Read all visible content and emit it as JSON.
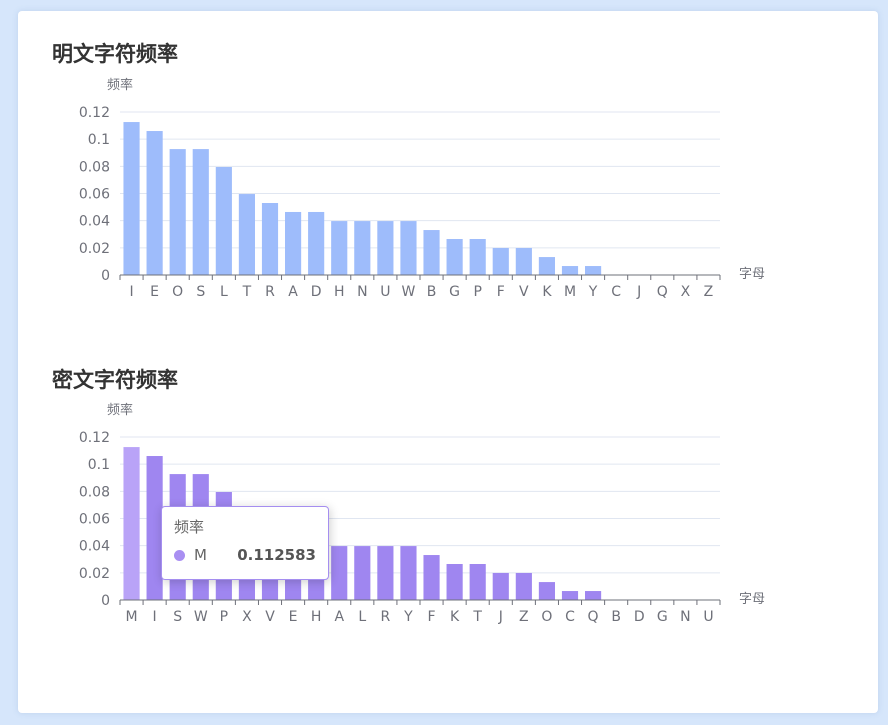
{
  "charts": [
    {
      "title": "明文字符频率",
      "ylabel": "频率",
      "xlabel": "字母",
      "color": "#9ebcfb"
    },
    {
      "title": "密文字符频率",
      "ylabel": "频率",
      "xlabel": "字母",
      "color": "#9f86f0",
      "highlight_color": "#b9a3f7"
    }
  ],
  "tooltip": {
    "title": "频率",
    "series_name": "M",
    "value": "0.112583"
  },
  "chart_data": [
    {
      "type": "bar",
      "title": "明文字符频率",
      "xlabel": "字母",
      "ylabel": "频率",
      "ylim": [
        0,
        0.12
      ],
      "yticks": [
        "0",
        "0.02",
        "0.04",
        "0.06",
        "0.08",
        "0.1",
        "0.12"
      ],
      "grid": true,
      "categories": [
        "I",
        "E",
        "O",
        "S",
        "L",
        "T",
        "R",
        "A",
        "D",
        "H",
        "N",
        "U",
        "W",
        "B",
        "G",
        "P",
        "F",
        "V",
        "K",
        "M",
        "Y",
        "C",
        "J",
        "Q",
        "X",
        "Z"
      ],
      "values": [
        0.1126,
        0.106,
        0.0927,
        0.0927,
        0.0795,
        0.0596,
        0.053,
        0.0464,
        0.0464,
        0.0397,
        0.0397,
        0.0397,
        0.0397,
        0.0331,
        0.0265,
        0.0265,
        0.0199,
        0.0199,
        0.0132,
        0.0066,
        0.0066,
        0,
        0,
        0,
        0,
        0
      ]
    },
    {
      "type": "bar",
      "title": "密文字符频率",
      "xlabel": "字母",
      "ylabel": "频率",
      "ylim": [
        0,
        0.12
      ],
      "yticks": [
        "0",
        "0.02",
        "0.04",
        "0.06",
        "0.08",
        "0.1",
        "0.12"
      ],
      "grid": true,
      "categories": [
        "M",
        "I",
        "S",
        "W",
        "P",
        "X",
        "V",
        "E",
        "H",
        "A",
        "L",
        "R",
        "Y",
        "F",
        "K",
        "T",
        "J",
        "Z",
        "O",
        "C",
        "Q",
        "B",
        "D",
        "G",
        "N",
        "U"
      ],
      "values": [
        0.112583,
        0.106,
        0.0927,
        0.0927,
        0.0795,
        0.0596,
        0.053,
        0.0464,
        0.0464,
        0.0397,
        0.0397,
        0.0397,
        0.0397,
        0.0331,
        0.0265,
        0.0265,
        0.0199,
        0.0199,
        0.0132,
        0.0066,
        0.0066,
        0,
        0,
        0,
        0,
        0
      ]
    }
  ]
}
